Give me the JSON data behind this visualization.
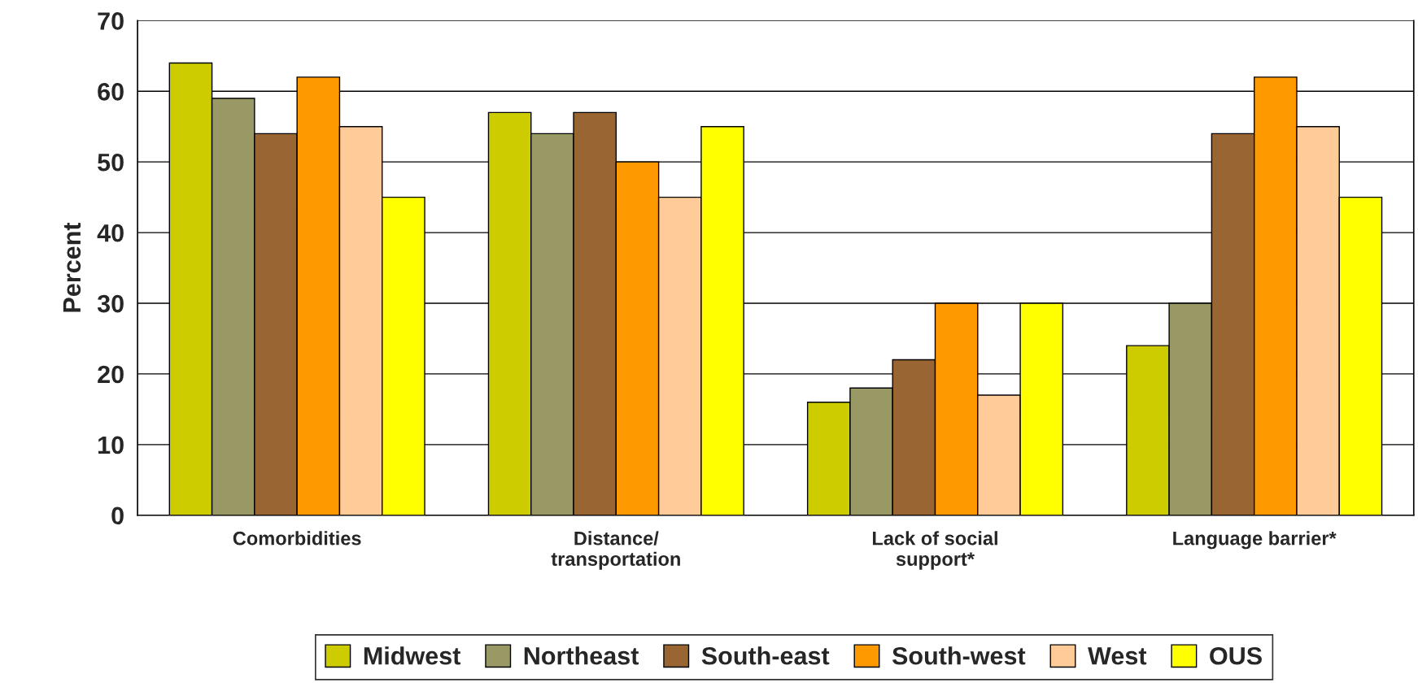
{
  "chart_data": {
    "type": "bar",
    "ylabel": "Percent",
    "categories": [
      "Comorbidities",
      "Distance/\ntransportation",
      "Lack of social\nsupport*",
      "Language barrier*"
    ],
    "series": [
      {
        "name": "Midwest",
        "color": "#cccc00",
        "values": [
          64,
          57,
          16,
          24
        ]
      },
      {
        "name": "Northeast",
        "color": "#999966",
        "values": [
          59,
          54,
          18,
          30
        ]
      },
      {
        "name": "South-east",
        "color": "#996633",
        "values": [
          54,
          57,
          22,
          54
        ]
      },
      {
        "name": "South-west",
        "color": "#ff9900",
        "values": [
          62,
          50,
          30,
          62
        ]
      },
      {
        "name": "West",
        "color": "#ffcc99",
        "values": [
          55,
          45,
          17,
          55
        ]
      },
      {
        "name": "OUS",
        "color": "#ffff00",
        "values": [
          45,
          55,
          30,
          45
        ]
      }
    ],
    "ylim": [
      0,
      70
    ],
    "yticks": [
      0,
      10,
      20,
      30,
      40,
      50,
      60,
      70
    ],
    "grid": "y",
    "legend": "bottom"
  }
}
